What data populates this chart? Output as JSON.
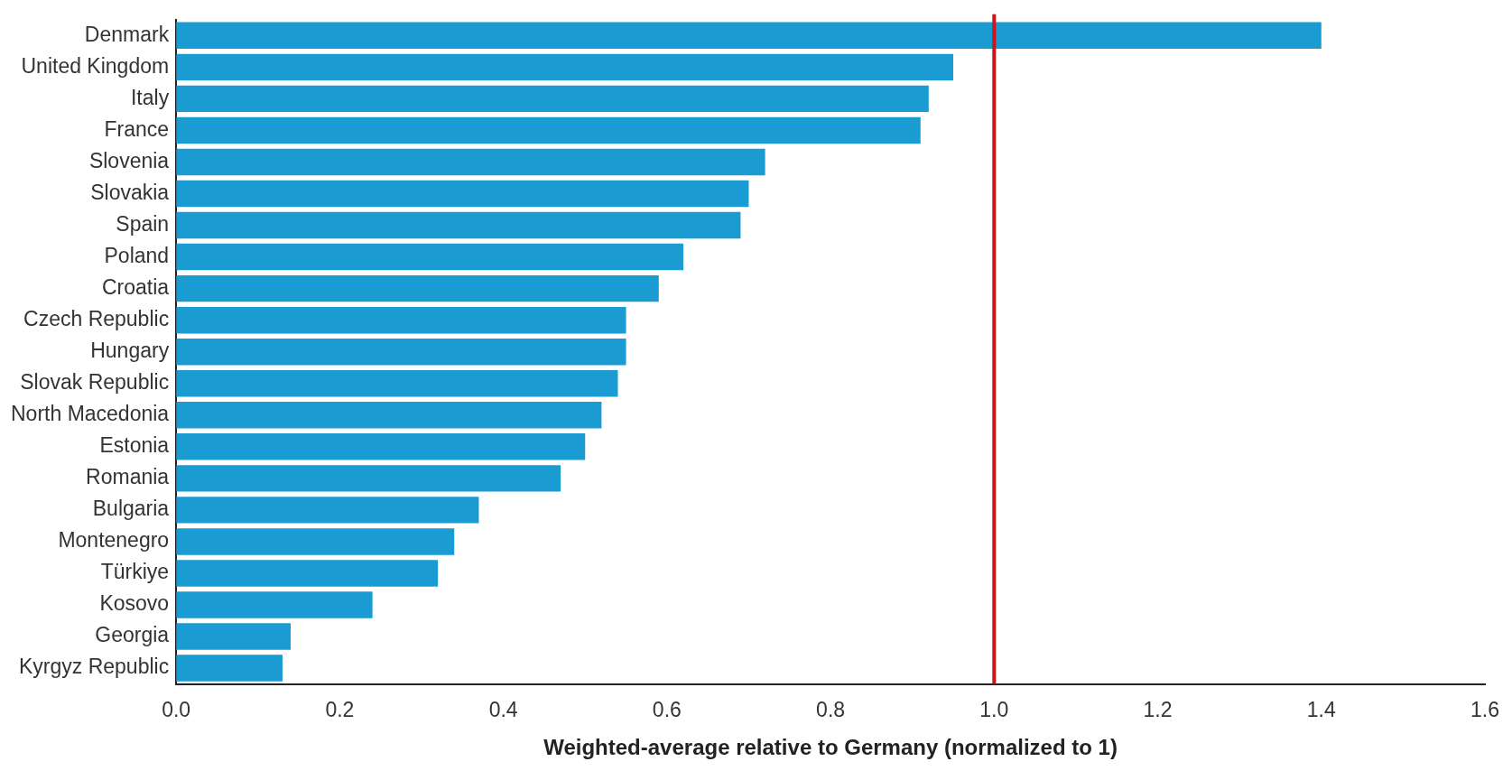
{
  "chart_data": {
    "type": "bar",
    "orientation": "horizontal",
    "xlabel": "Weighted-average relative to Germany (normalized to 1)",
    "categories": [
      "Denmark",
      "United Kingdom",
      "Italy",
      "France",
      "Slovenia",
      "Slovakia",
      "Spain",
      "Poland",
      "Croatia",
      "Czech Republic",
      "Hungary",
      "Slovak Republic",
      "North Macedonia",
      "Estonia",
      "Romania",
      "Bulgaria",
      "Montenegro",
      "Türkiye",
      "Kosovo",
      "Georgia",
      "Kyrgyz Republic"
    ],
    "values": [
      1.4,
      0.95,
      0.92,
      0.91,
      0.72,
      0.7,
      0.69,
      0.62,
      0.59,
      0.55,
      0.55,
      0.54,
      0.52,
      0.5,
      0.47,
      0.37,
      0.34,
      0.32,
      0.24,
      0.14,
      0.13
    ],
    "color": "#1a9bd1",
    "xlim": [
      0,
      1.6
    ],
    "xticks": [
      {
        "value": 0,
        "label": "0.0"
      },
      0.2,
      0.4,
      0.6,
      0.8,
      {
        "value": 1,
        "label": "1.0"
      },
      1.2,
      1.4,
      1.6
    ],
    "ref_lines": [
      {
        "axis": "x",
        "value": 1,
        "color": "#c8161d"
      }
    ],
    "grid": false,
    "legend": false
  }
}
